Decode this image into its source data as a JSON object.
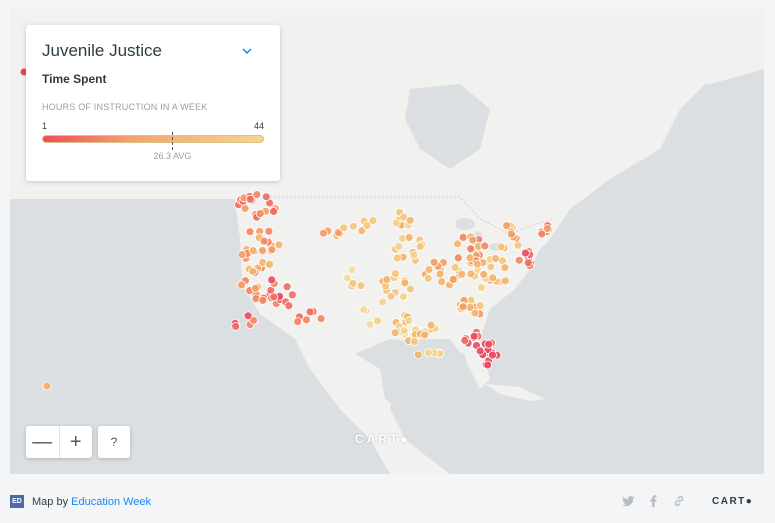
{
  "legend": {
    "title": "Juvenile Justice",
    "subtitle": "Time Spent",
    "caption": "HOURS OF INSTRUCTION IN A WEEK",
    "min_label": "1",
    "max_label": "44",
    "avg_label": "26.3 AVG",
    "min_value": 1,
    "max_value": 44,
    "avg_value": 26.3,
    "color_low": "#ee4d5a",
    "color_high": "#f7d58c"
  },
  "controls": {
    "zoom_out": "—",
    "zoom_in": "+",
    "help": "?"
  },
  "watermark": "CART●",
  "footer": {
    "prefix": "Map by ",
    "author": "Education Week",
    "logo": "ED WEEK",
    "carto": "CART●"
  },
  "icons": [
    "chevron-down-icon",
    "twitter-icon",
    "facebook-icon",
    "link-icon"
  ],
  "colors": {
    "land": "#f1f1f0",
    "water": "#dcdfe2",
    "accent": "#1785fb"
  }
}
